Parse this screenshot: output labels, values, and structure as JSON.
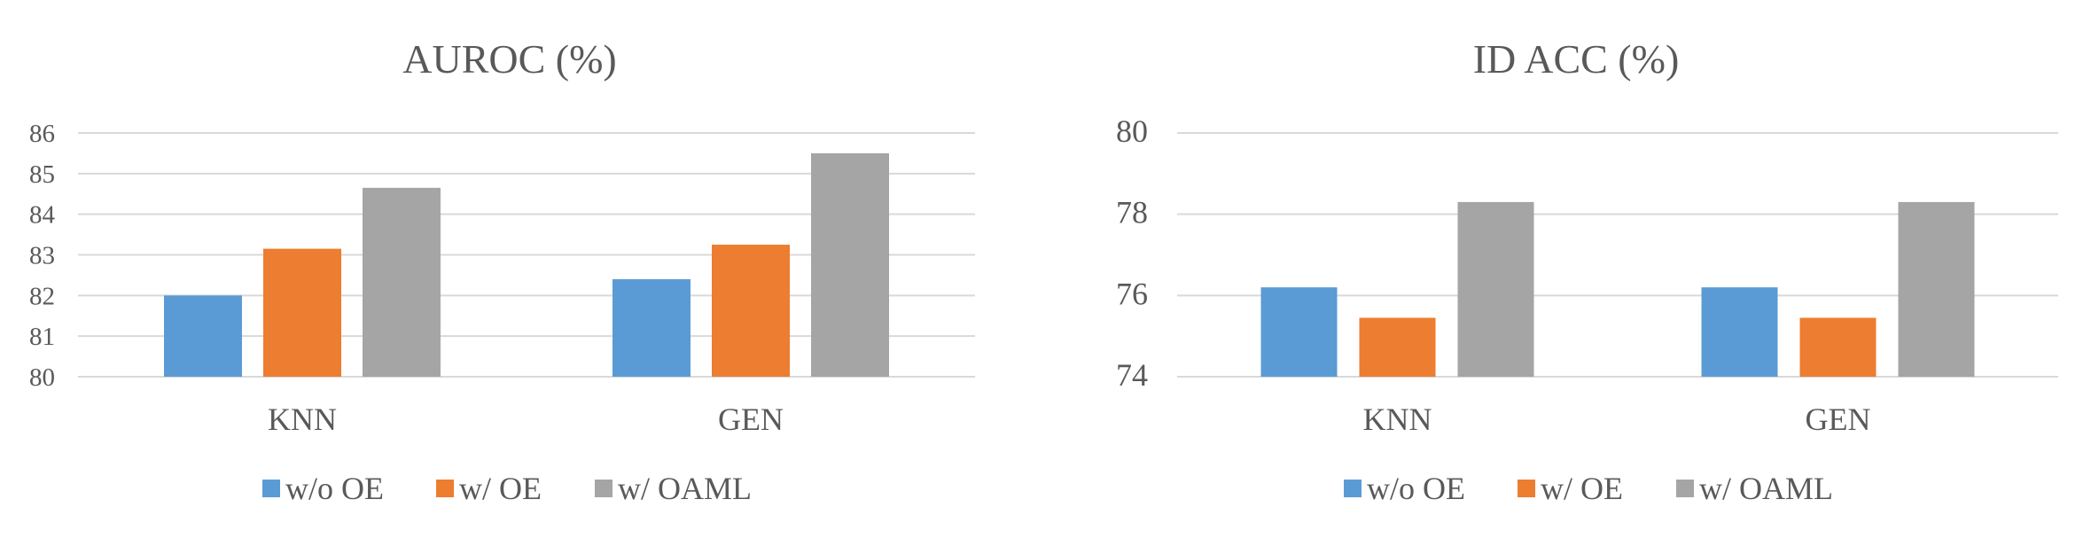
{
  "chart_data": [
    {
      "type": "bar",
      "title": "AUROC (%)",
      "categories": [
        "KNN",
        "GEN"
      ],
      "ylim": [
        80,
        86
      ],
      "yticks": [
        80,
        81,
        82,
        83,
        84,
        85,
        86
      ],
      "grid": true,
      "legend_position": "bottom",
      "series": [
        {
          "name": "w/o OE",
          "color": "#5b9bd5",
          "values": [
            82.0,
            82.4
          ]
        },
        {
          "name": "w/ OE",
          "color": "#ed7d31",
          "values": [
            83.15,
            83.25
          ]
        },
        {
          "name": "w/ OAML",
          "color": "#a5a5a5",
          "values": [
            84.65,
            85.5
          ]
        }
      ]
    },
    {
      "type": "bar",
      "title": "ID ACC (%)",
      "categories": [
        "KNN",
        "GEN"
      ],
      "ylim": [
        74,
        80
      ],
      "yticks": [
        74,
        76,
        78,
        80
      ],
      "grid": true,
      "legend_position": "bottom",
      "series": [
        {
          "name": "w/o OE",
          "color": "#5b9bd5",
          "values": [
            76.2,
            76.2
          ]
        },
        {
          "name": "w/ OE",
          "color": "#ed7d31",
          "values": [
            75.45,
            75.45
          ]
        },
        {
          "name": "w/ OAML",
          "color": "#a5a5a5",
          "values": [
            78.3,
            78.3
          ]
        }
      ]
    }
  ]
}
